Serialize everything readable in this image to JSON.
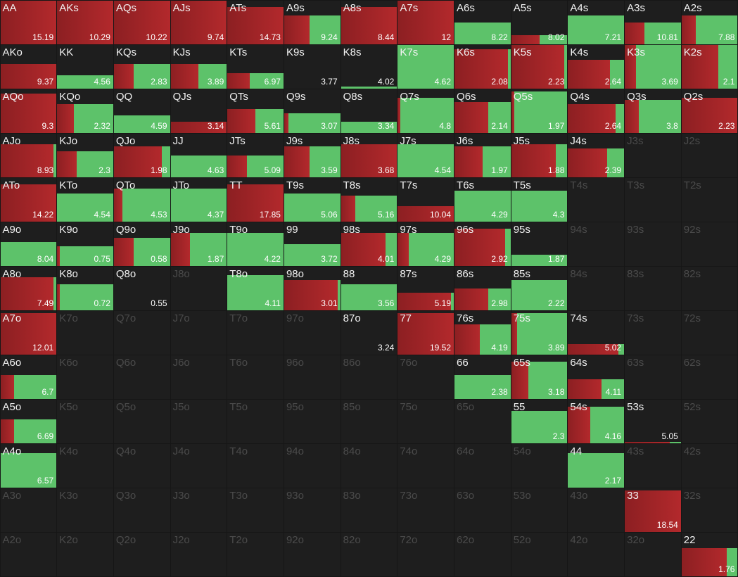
{
  "grid": {
    "rows": [
      [
        {
          "label": "AA",
          "value": 15.19,
          "height": 1,
          "red": 1
        },
        {
          "label": "AKs",
          "value": 10.29,
          "height": 1,
          "red": 1
        },
        {
          "label": "AQs",
          "value": 10.22,
          "height": 1,
          "red": 1
        },
        {
          "label": "AJs",
          "value": 9.74,
          "height": 1,
          "red": 1
        },
        {
          "label": "ATs",
          "value": 14.73,
          "height": 0.85,
          "red": 1
        },
        {
          "label": "A9s",
          "value": 9.24,
          "height": 0.65,
          "red": 0.45
        },
        {
          "label": "A8s",
          "value": 8.44,
          "height": 0.85,
          "red": 1
        },
        {
          "label": "A7s",
          "value": 12,
          "height": 1,
          "red": 1
        },
        {
          "label": "A6s",
          "value": 8.22,
          "height": 0.5,
          "red": 0
        },
        {
          "label": "A5s",
          "value": 8.02,
          "height": 0.2,
          "red": 0.5
        },
        {
          "label": "A4s",
          "value": 7.21,
          "height": 0.65,
          "red": 0
        },
        {
          "label": "A3s",
          "value": 10.81,
          "height": 0.5,
          "red": 0.35
        },
        {
          "label": "A2s",
          "value": 7.88,
          "height": 0.65,
          "red": 0.25
        }
      ],
      [
        {
          "label": "AKo",
          "value": 9.37,
          "height": 0.55,
          "red": 1
        },
        {
          "label": "KK",
          "value": 4.56,
          "height": 0.3,
          "red": 0
        },
        {
          "label": "KQs",
          "value": 2.83,
          "height": 0.55,
          "red": 0.35
        },
        {
          "label": "KJs",
          "value": 3.89,
          "height": 0.55,
          "red": 0.5
        },
        {
          "label": "KTs",
          "value": 6.97,
          "height": 0.35,
          "red": 0.4
        },
        {
          "label": "K9s",
          "value": 3.77,
          "height": 0,
          "red": 0
        },
        {
          "label": "K8s",
          "value": 4.02,
          "height": 0.05,
          "red": 0
        },
        {
          "label": "K7s",
          "value": 4.62,
          "height": 1,
          "red": 0
        },
        {
          "label": "K6s",
          "value": 2.08,
          "height": 0.9,
          "red": 0.95
        },
        {
          "label": "K5s",
          "value": 2.23,
          "height": 1,
          "red": 0.95
        },
        {
          "label": "K4s",
          "value": 2.64,
          "height": 0.65,
          "red": 0.75
        },
        {
          "label": "K3s",
          "value": 3.69,
          "height": 1,
          "red": 0.2
        },
        {
          "label": "K2s",
          "value": 2.1,
          "height": 1,
          "red": 0.65
        }
      ],
      [
        {
          "label": "AQo",
          "value": 9.3,
          "height": 0.9,
          "red": 1
        },
        {
          "label": "KQo",
          "value": 2.32,
          "height": 0.65,
          "red": 0.3
        },
        {
          "label": "QQ",
          "value": 4.59,
          "height": 0.4,
          "red": 0
        },
        {
          "label": "QJs",
          "value": 3.14,
          "height": 0.25,
          "red": 1
        },
        {
          "label": "QTs",
          "value": 5.61,
          "height": 0.55,
          "red": 0.5
        },
        {
          "label": "Q9s",
          "value": 3.07,
          "height": 0.45,
          "red": 0.07
        },
        {
          "label": "Q8s",
          "value": 3.34,
          "height": 0.25,
          "red": 0
        },
        {
          "label": "Q7s",
          "value": 4.8,
          "height": 0.8,
          "red": 0.05
        },
        {
          "label": "Q6s",
          "value": 2.14,
          "height": 0.7,
          "red": 0.6
        },
        {
          "label": "Q5s",
          "value": 1.97,
          "height": 0.95,
          "red": 0.05
        },
        {
          "label": "Q4s",
          "value": 2.64,
          "height": 0.65,
          "red": 0.85
        },
        {
          "label": "Q3s",
          "value": 3.8,
          "height": 0.75,
          "red": 0.25
        },
        {
          "label": "Q2s",
          "value": 2.23,
          "height": 0.8,
          "red": 1
        }
      ],
      [
        {
          "label": "AJo",
          "value": 8.93,
          "height": 0.75,
          "red": 0.95
        },
        {
          "label": "KJo",
          "value": 2.3,
          "height": 0.6,
          "red": 0.35
        },
        {
          "label": "QJo",
          "value": 1.98,
          "height": 0.7,
          "red": 0.85
        },
        {
          "label": "JJ",
          "value": 4.63,
          "height": 0.5,
          "red": 0
        },
        {
          "label": "JTs",
          "value": 5.09,
          "height": 0.5,
          "red": 0.35
        },
        {
          "label": "J9s",
          "value": 3.59,
          "height": 0.7,
          "red": 0.45
        },
        {
          "label": "J8s",
          "value": 3.68,
          "height": 0.75,
          "red": 1
        },
        {
          "label": "J7s",
          "value": 4.54,
          "height": 0.75,
          "red": 0
        },
        {
          "label": "J6s",
          "value": 1.97,
          "height": 0.7,
          "red": 0.5
        },
        {
          "label": "J5s",
          "value": 1.88,
          "height": 0.75,
          "red": 0.8
        },
        {
          "label": "J4s",
          "value": 2.39,
          "height": 0.65,
          "red": 0.7
        },
        {
          "label": "J3s"
        },
        {
          "label": "J2s"
        }
      ],
      [
        {
          "label": "ATo",
          "value": 14.22,
          "height": 0.85,
          "red": 1
        },
        {
          "label": "KTo",
          "value": 4.54,
          "height": 0.65,
          "red": 0
        },
        {
          "label": "QTo",
          "value": 4.53,
          "height": 0.75,
          "red": 0.15
        },
        {
          "label": "JTo",
          "value": 4.37,
          "height": 0.75,
          "red": 0
        },
        {
          "label": "TT",
          "value": 17.85,
          "height": 0.85,
          "red": 1
        },
        {
          "label": "T9s",
          "value": 5.06,
          "height": 0.65,
          "red": 0
        },
        {
          "label": "T8s",
          "value": 5.16,
          "height": 0.6,
          "red": 0.25
        },
        {
          "label": "T7s",
          "value": 10.04,
          "height": 0.35,
          "red": 1
        },
        {
          "label": "T6s",
          "value": 4.29,
          "height": 0.7,
          "red": 0
        },
        {
          "label": "T5s",
          "value": 4.3,
          "height": 0.7,
          "red": 0
        },
        {
          "label": "T4s"
        },
        {
          "label": "T3s"
        },
        {
          "label": "T2s"
        }
      ],
      [
        {
          "label": "A9o",
          "value": 8.04,
          "height": 0.55,
          "red": 0
        },
        {
          "label": "K9o",
          "value": 0.75,
          "height": 0.45,
          "red": 0.05
        },
        {
          "label": "Q9o",
          "value": 0.58,
          "height": 0.65,
          "red": 0.35
        },
        {
          "label": "J9o",
          "value": 1.87,
          "height": 0.75,
          "red": 0.35
        },
        {
          "label": "T9o",
          "value": 4.22,
          "height": 0.75,
          "red": 0
        },
        {
          "label": "99",
          "value": 3.72,
          "height": 0.5,
          "red": 0
        },
        {
          "label": "98s",
          "value": 4.01,
          "height": 0.75,
          "red": 0.8
        },
        {
          "label": "97s",
          "value": 4.29,
          "height": 0.75,
          "red": 0.2
        },
        {
          "label": "96s",
          "value": 2.92,
          "height": 0.85,
          "red": 0.9
        },
        {
          "label": "95s",
          "value": 1.87,
          "height": 0.25,
          "red": 0
        },
        {
          "label": "94s"
        },
        {
          "label": "93s"
        },
        {
          "label": "92s"
        }
      ],
      [
        {
          "label": "A8o",
          "value": 7.49,
          "height": 0.75,
          "red": 0.95
        },
        {
          "label": "K8o",
          "value": 0.72,
          "height": 0.6,
          "red": 0.05
        },
        {
          "label": "Q8o",
          "value": 0.55,
          "height": 0,
          "red": 0
        },
        {
          "label": "J8o"
        },
        {
          "label": "T8o",
          "value": 4.11,
          "height": 0.8,
          "red": 0
        },
        {
          "label": "98o",
          "value": 3.01,
          "height": 0.7,
          "red": 0.95
        },
        {
          "label": "88",
          "value": 3.56,
          "height": 0.6,
          "red": 0
        },
        {
          "label": "87s",
          "value": 5.19,
          "height": 0.4,
          "red": 0.95
        },
        {
          "label": "86s",
          "value": 2.98,
          "height": 0.5,
          "red": 0.6
        },
        {
          "label": "85s",
          "value": 2.22,
          "height": 0.7,
          "red": 0
        },
        {
          "label": "84s"
        },
        {
          "label": "83s"
        },
        {
          "label": "82s"
        }
      ],
      [
        {
          "label": "A7o",
          "value": 12.01,
          "height": 0.95,
          "red": 1
        },
        {
          "label": "K7o"
        },
        {
          "label": "Q7o"
        },
        {
          "label": "J7o"
        },
        {
          "label": "T7o"
        },
        {
          "label": "97o"
        },
        {
          "label": "87o",
          "value": 3.24,
          "height": 0,
          "red": 0
        },
        {
          "label": "77",
          "value": 19.52,
          "height": 0.95,
          "red": 1
        },
        {
          "label": "76s",
          "value": 4.19,
          "height": 0.7,
          "red": 0.45
        },
        {
          "label": "75s",
          "value": 3.89,
          "height": 0.95,
          "red": 0.1
        },
        {
          "label": "74s",
          "value": 5.02,
          "height": 0.25,
          "red": 0.9
        },
        {
          "label": "73s"
        },
        {
          "label": "72s"
        }
      ],
      [
        {
          "label": "A6o",
          "value": 6.7,
          "height": 0.55,
          "red": 0.25
        },
        {
          "label": "K6o"
        },
        {
          "label": "Q6o"
        },
        {
          "label": "J6o"
        },
        {
          "label": "T6o"
        },
        {
          "label": "96o"
        },
        {
          "label": "86o"
        },
        {
          "label": "76o"
        },
        {
          "label": "66",
          "value": 2.38,
          "height": 0.55,
          "red": 0
        },
        {
          "label": "65s",
          "value": 3.18,
          "height": 0.85,
          "red": 0.3
        },
        {
          "label": "64s",
          "value": 4.11,
          "height": 0.45,
          "red": 0.6
        },
        {
          "label": "63s"
        },
        {
          "label": "62s"
        }
      ],
      [
        {
          "label": "A5o",
          "value": 6.69,
          "height": 0.55,
          "red": 0.25
        },
        {
          "label": "K5o"
        },
        {
          "label": "Q5o"
        },
        {
          "label": "J5o"
        },
        {
          "label": "T5o"
        },
        {
          "label": "95o"
        },
        {
          "label": "85o"
        },
        {
          "label": "75o"
        },
        {
          "label": "65o"
        },
        {
          "label": "55",
          "value": 2.3,
          "height": 0.75,
          "red": 0
        },
        {
          "label": "54s",
          "value": 4.16,
          "height": 0.85,
          "red": 0.4
        },
        {
          "label": "53s",
          "value": 5.05,
          "height": 0.03,
          "red": 0.8
        },
        {
          "label": "52s"
        }
      ],
      [
        {
          "label": "A4o",
          "value": 6.57,
          "height": 0.8,
          "red": 0
        },
        {
          "label": "K4o"
        },
        {
          "label": "Q4o"
        },
        {
          "label": "J4o"
        },
        {
          "label": "T4o"
        },
        {
          "label": "94o"
        },
        {
          "label": "84o"
        },
        {
          "label": "74o"
        },
        {
          "label": "64o"
        },
        {
          "label": "54o"
        },
        {
          "label": "44",
          "value": 2.17,
          "height": 0.8,
          "red": 0
        },
        {
          "label": "43s"
        },
        {
          "label": "42s"
        }
      ],
      [
        {
          "label": "A3o"
        },
        {
          "label": "K3o"
        },
        {
          "label": "Q3o"
        },
        {
          "label": "J3o"
        },
        {
          "label": "T3o"
        },
        {
          "label": "93o"
        },
        {
          "label": "83o"
        },
        {
          "label": "73o"
        },
        {
          "label": "63o"
        },
        {
          "label": "53o"
        },
        {
          "label": "43o"
        },
        {
          "label": "33",
          "value": 18.54,
          "height": 0.95,
          "red": 1
        },
        {
          "label": "32s"
        }
      ],
      [
        {
          "label": "A2o"
        },
        {
          "label": "K2o"
        },
        {
          "label": "Q2o"
        },
        {
          "label": "J2o"
        },
        {
          "label": "T2o"
        },
        {
          "label": "92o"
        },
        {
          "label": "82o"
        },
        {
          "label": "72o"
        },
        {
          "label": "62o"
        },
        {
          "label": "52o"
        },
        {
          "label": "42o"
        },
        {
          "label": "32o"
        },
        {
          "label": "22",
          "value": 1.76,
          "height": 0.65,
          "red": 0.8
        }
      ]
    ]
  }
}
